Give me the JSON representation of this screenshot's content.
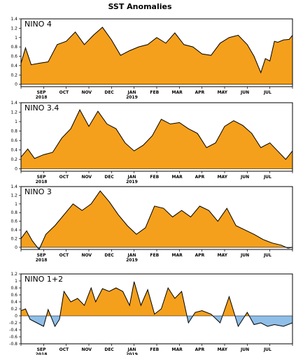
{
  "title": "SST Anomalies",
  "colors": {
    "positive": "#f5a01c",
    "negative": "#8fbfe8",
    "line": "#000000"
  },
  "chart_data": [
    {
      "type": "area",
      "title": "NINO 4",
      "ylim": [
        -0.05,
        1.4
      ],
      "yticks": [
        0,
        0.2,
        0.4,
        0.6,
        0.8,
        1,
        1.2,
        1.4
      ],
      "ytick_labels": [
        "0",
        "0.2",
        "0.4",
        "0.6",
        "0.8",
        "1",
        "1.2",
        "1.4"
      ],
      "x": [
        0,
        0.2,
        0.45,
        0.8,
        1.2,
        1.6,
        2.0,
        2.4,
        2.8,
        3.2,
        3.6,
        4.0,
        4.4,
        4.8,
        5.2,
        5.6,
        6.0,
        6.4,
        6.8,
        7.2,
        7.6,
        8.0,
        8.4,
        8.8,
        9.2,
        9.6,
        10.0,
        10.3,
        10.6,
        10.8,
        11.0,
        11.2,
        11.35,
        11.6,
        11.85,
        12.0
      ],
      "y": [
        0.45,
        0.78,
        0.42,
        0.45,
        0.48,
        0.85,
        0.92,
        1.12,
        0.85,
        1.05,
        1.22,
        0.95,
        0.62,
        0.72,
        0.8,
        0.85,
        1.0,
        0.88,
        1.1,
        0.85,
        0.8,
        0.65,
        0.62,
        0.88,
        1.0,
        1.05,
        0.85,
        0.6,
        0.25,
        0.55,
        0.5,
        0.92,
        0.9,
        0.95,
        0.96,
        1.05
      ]
    },
    {
      "type": "area",
      "title": "NINO 3.4",
      "ylim": [
        -0.05,
        1.4
      ],
      "yticks": [
        0,
        0.2,
        0.4,
        0.6,
        0.8,
        1,
        1.2,
        1.4
      ],
      "ytick_labels": [
        "0",
        "0.2",
        "0.4",
        "0.6",
        "0.8",
        "1",
        "1.2",
        "1.4"
      ],
      "x": [
        0,
        0.3,
        0.6,
        1.0,
        1.4,
        1.8,
        2.2,
        2.6,
        3.0,
        3.4,
        3.8,
        4.2,
        4.6,
        5.0,
        5.4,
        5.8,
        6.2,
        6.6,
        7.0,
        7.4,
        7.8,
        8.2,
        8.6,
        9.0,
        9.4,
        9.8,
        10.2,
        10.6,
        11.0,
        11.4,
        11.7,
        12.0
      ],
      "y": [
        0.25,
        0.42,
        0.22,
        0.3,
        0.35,
        0.65,
        0.85,
        1.25,
        0.9,
        1.22,
        0.95,
        0.85,
        0.55,
        0.38,
        0.5,
        0.7,
        1.05,
        0.95,
        0.98,
        0.85,
        0.75,
        0.45,
        0.55,
        0.9,
        1.02,
        0.92,
        0.75,
        0.45,
        0.55,
        0.35,
        0.2,
        0.38
      ]
    },
    {
      "type": "area",
      "title": "NINO 3",
      "ylim": [
        -0.05,
        1.4
      ],
      "yticks": [
        0,
        0.2,
        0.4,
        0.6,
        0.8,
        1,
        1.2,
        1.4
      ],
      "ytick_labels": [
        "0",
        "0.2",
        "0.4",
        "0.6",
        "0.8",
        "1",
        "1.2",
        "1.4"
      ],
      "x": [
        0,
        0.25,
        0.5,
        0.8,
        1.1,
        1.5,
        1.9,
        2.3,
        2.7,
        3.1,
        3.5,
        3.9,
        4.3,
        4.7,
        5.1,
        5.5,
        5.9,
        6.3,
        6.7,
        7.1,
        7.5,
        7.9,
        8.3,
        8.7,
        9.1,
        9.5,
        9.9,
        10.3,
        10.7,
        11.1,
        11.5,
        11.8,
        12.0
      ],
      "y": [
        0.2,
        0.38,
        0.15,
        -0.05,
        0.3,
        0.5,
        0.75,
        1.0,
        0.85,
        1.0,
        1.3,
        1.05,
        0.75,
        0.5,
        0.3,
        0.45,
        0.95,
        0.9,
        0.7,
        0.85,
        0.7,
        0.95,
        0.85,
        0.6,
        0.9,
        0.5,
        0.4,
        0.3,
        0.18,
        0.1,
        0.05,
        -0.02,
        0.0
      ]
    },
    {
      "type": "area",
      "title": "NINO 1+2",
      "ylim": [
        -0.8,
        1.2
      ],
      "yticks": [
        -0.8,
        -0.6,
        -0.4,
        -0.2,
        0,
        0.2,
        0.4,
        0.6,
        0.8,
        1,
        1.2
      ],
      "ytick_labels": [
        "-0.8",
        "-0.6",
        "-0.4",
        "-0.2",
        "0",
        "0.2",
        "0.4",
        "0.6",
        "0.8",
        "1",
        "1.2"
      ],
      "x": [
        0,
        0.2,
        0.4,
        0.7,
        1.0,
        1.2,
        1.5,
        1.7,
        1.9,
        2.2,
        2.5,
        2.8,
        3.1,
        3.3,
        3.6,
        3.9,
        4.2,
        4.5,
        4.8,
        5.0,
        5.3,
        5.6,
        5.9,
        6.2,
        6.5,
        6.8,
        7.1,
        7.4,
        7.7,
        8.0,
        8.4,
        8.8,
        9.2,
        9.6,
        10.0,
        10.3,
        10.6,
        10.9,
        11.2,
        11.6,
        12.0
      ],
      "y": [
        0.15,
        0.2,
        -0.1,
        -0.2,
        -0.3,
        0.18,
        -0.3,
        -0.1,
        0.7,
        0.4,
        0.5,
        0.3,
        0.8,
        0.4,
        0.78,
        0.7,
        0.8,
        0.7,
        0.3,
        0.98,
        0.3,
        0.75,
        0.05,
        0.2,
        0.8,
        0.5,
        0.7,
        -0.2,
        0.1,
        0.15,
        0.05,
        -0.2,
        0.55,
        -0.3,
        0.1,
        -0.25,
        -0.2,
        -0.3,
        -0.25,
        -0.3,
        -0.2
      ]
    }
  ],
  "x_axis": {
    "months": [
      "SEP",
      "OCT",
      "NOV",
      "DEC",
      "JAN",
      "FEB",
      "MAR",
      "APR",
      "MAY",
      "JUN",
      "JUL"
    ],
    "month_positions": [
      0.9,
      1.9,
      2.9,
      3.9,
      4.9,
      5.9,
      6.9,
      7.9,
      8.9,
      9.9,
      10.9
    ],
    "years": [
      {
        "label": "2018",
        "at": 0.9
      },
      {
        "label": "2019",
        "at": 4.9
      }
    ]
  }
}
